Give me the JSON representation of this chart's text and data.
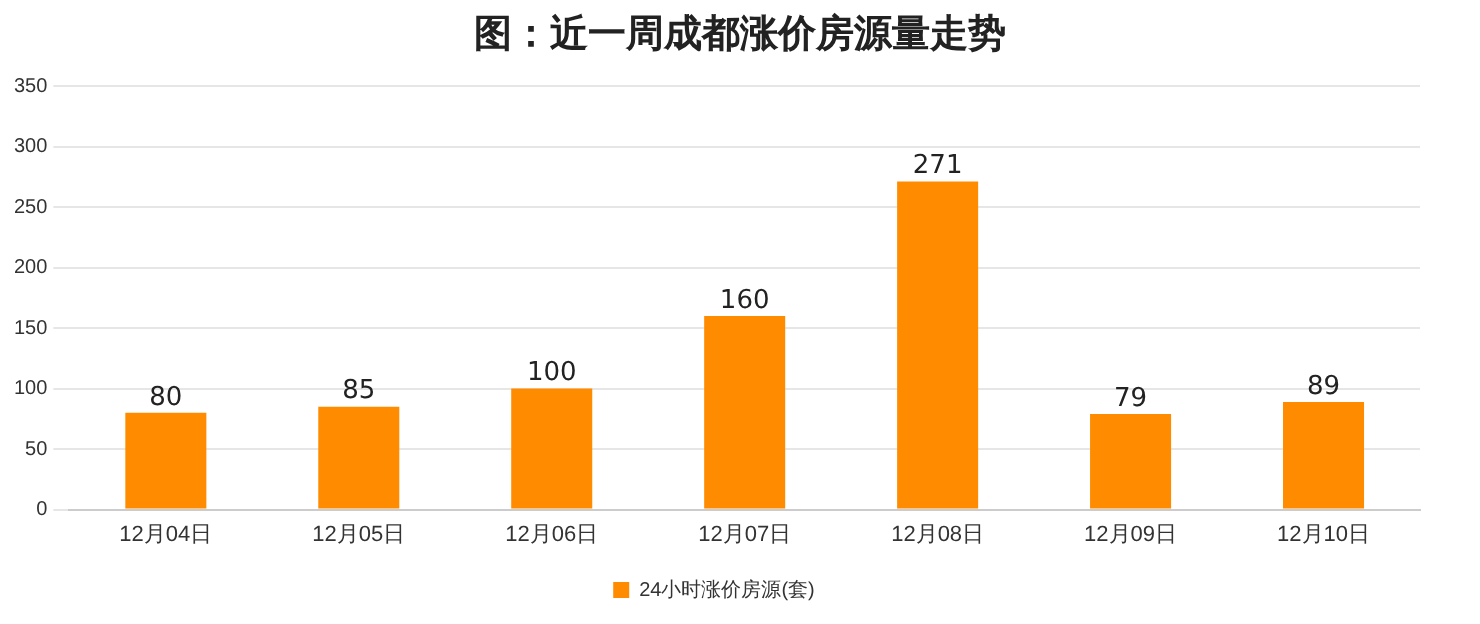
{
  "chart_data": {
    "type": "bar",
    "title": "图：近一周成都涨价房源量走势",
    "categories": [
      "12月04日",
      "12月05日",
      "12月06日",
      "12月07日",
      "12月08日",
      "12月09日",
      "12月10日"
    ],
    "series": [
      {
        "name": "24小时涨价房源(套)",
        "color": "#ff8c00",
        "values": [
          80,
          85,
          100,
          160,
          271,
          79,
          89
        ]
      }
    ],
    "ylim": [
      0,
      350
    ],
    "yticks": [
      0,
      50,
      100,
      150,
      200,
      250,
      300,
      350
    ],
    "grid": "y",
    "legend": "bottom",
    "data_labels": true
  }
}
